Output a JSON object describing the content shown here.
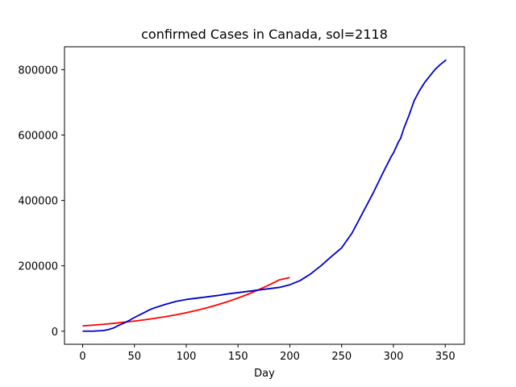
{
  "chart_data": {
    "type": "line",
    "title": "confirmed Cases in Canada, sol=2118",
    "xlabel": "Day",
    "ylabel": "",
    "xlim": [
      -17.5,
      368.5
    ],
    "ylim": [
      -40000,
      870000
    ],
    "x_ticks": [
      0,
      50,
      100,
      150,
      200,
      250,
      300,
      350
    ],
    "y_ticks": [
      0,
      200000,
      400000,
      600000,
      800000
    ],
    "grid": false,
    "legend": "none",
    "series": [
      {
        "color": "#ff0000",
        "x": [
          0,
          10,
          20,
          30,
          40,
          50,
          60,
          70,
          80,
          90,
          100,
          110,
          120,
          130,
          140,
          150,
          160,
          170,
          180,
          190,
          200
        ],
        "y": [
          16000,
          18500,
          21000,
          24000,
          27500,
          31000,
          35000,
          39500,
          44500,
          50000,
          56500,
          63500,
          71500,
          80500,
          90500,
          101500,
          113500,
          127000,
          141500,
          157000,
          164000
        ]
      },
      {
        "color": "#0000cc",
        "x": [
          0,
          10,
          20,
          25,
          30,
          35,
          40,
          45,
          50,
          55,
          60,
          65,
          70,
          80,
          90,
          100,
          110,
          120,
          130,
          140,
          150,
          160,
          170,
          180,
          190,
          200,
          210,
          220,
          230,
          240,
          250,
          260,
          270,
          280,
          290,
          298,
          300,
          305,
          307,
          310,
          315,
          320,
          325,
          330,
          335,
          340,
          345,
          351
        ],
        "y": [
          0,
          0,
          2000,
          5000,
          10000,
          18000,
          25000,
          33000,
          42000,
          50000,
          58000,
          66000,
          72000,
          82000,
          91000,
          97000,
          101000,
          105000,
          109000,
          114000,
          118000,
          122000,
          126000,
          130000,
          134000,
          142000,
          155000,
          175000,
          200000,
          228000,
          255000,
          300000,
          360000,
          420000,
          485000,
          535000,
          545000,
          580000,
          590000,
          620000,
          660000,
          705000,
          735000,
          760000,
          780000,
          800000,
          815000,
          830000
        ]
      }
    ]
  }
}
